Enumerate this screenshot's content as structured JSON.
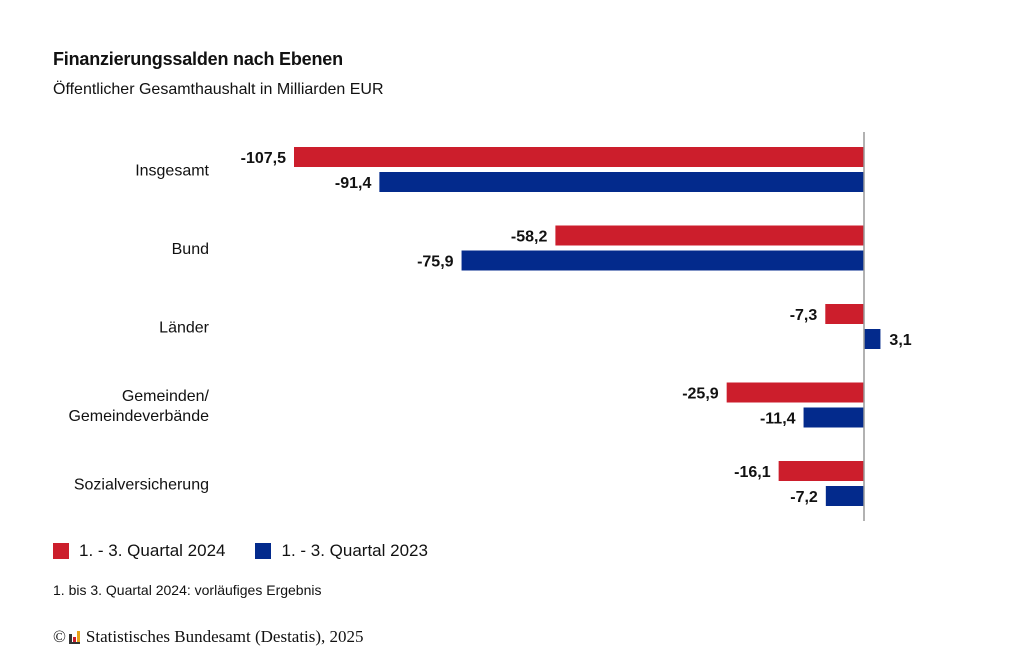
{
  "chart_data": {
    "type": "bar",
    "orientation": "horizontal",
    "title": "Finanzierungssalden nach Ebenen",
    "subtitle": "Öffentlicher Gesamthaushalt in Milliarden EUR",
    "categories": [
      "Insgesamt",
      "Bund",
      "Länder",
      "Gemeinden/\nGemeindeverbände",
      "Sozialversicherung"
    ],
    "category_lines": [
      [
        "Insgesamt"
      ],
      [
        "Bund"
      ],
      [
        "Länder"
      ],
      [
        "Gemeinden/",
        "Gemeindeverbände"
      ],
      [
        "Sozialversicherung"
      ]
    ],
    "series": [
      {
        "name": "1. - 3. Quartal 2024",
        "color": "#cc1e2c",
        "values": [
          -107.5,
          -58.2,
          -7.3,
          -25.9,
          -16.1
        ],
        "labels": [
          "-107,5",
          "-58,2",
          "-7,3",
          "-25,9",
          "-16,1"
        ]
      },
      {
        "name": "1. - 3. Quartal 2023",
        "color": "#032a8c",
        "values": [
          -91.4,
          -75.9,
          3.1,
          -11.4,
          -7.2
        ],
        "labels": [
          "-91,4",
          "-75,9",
          "3,1",
          "-11,4",
          "-7,2"
        ]
      }
    ],
    "xlim": [
      -107.5,
      8
    ],
    "xlabel": "",
    "ylabel": "",
    "grid": false,
    "legend_position": "bottom-left",
    "axis_color": "#999999"
  },
  "footnote": "1. bis 3. Quartal 2024: vorläufiges Ergebnis",
  "copyright": {
    "symbol": "©",
    "text": "Statistisches Bundesamt (Destatis), 2025"
  }
}
